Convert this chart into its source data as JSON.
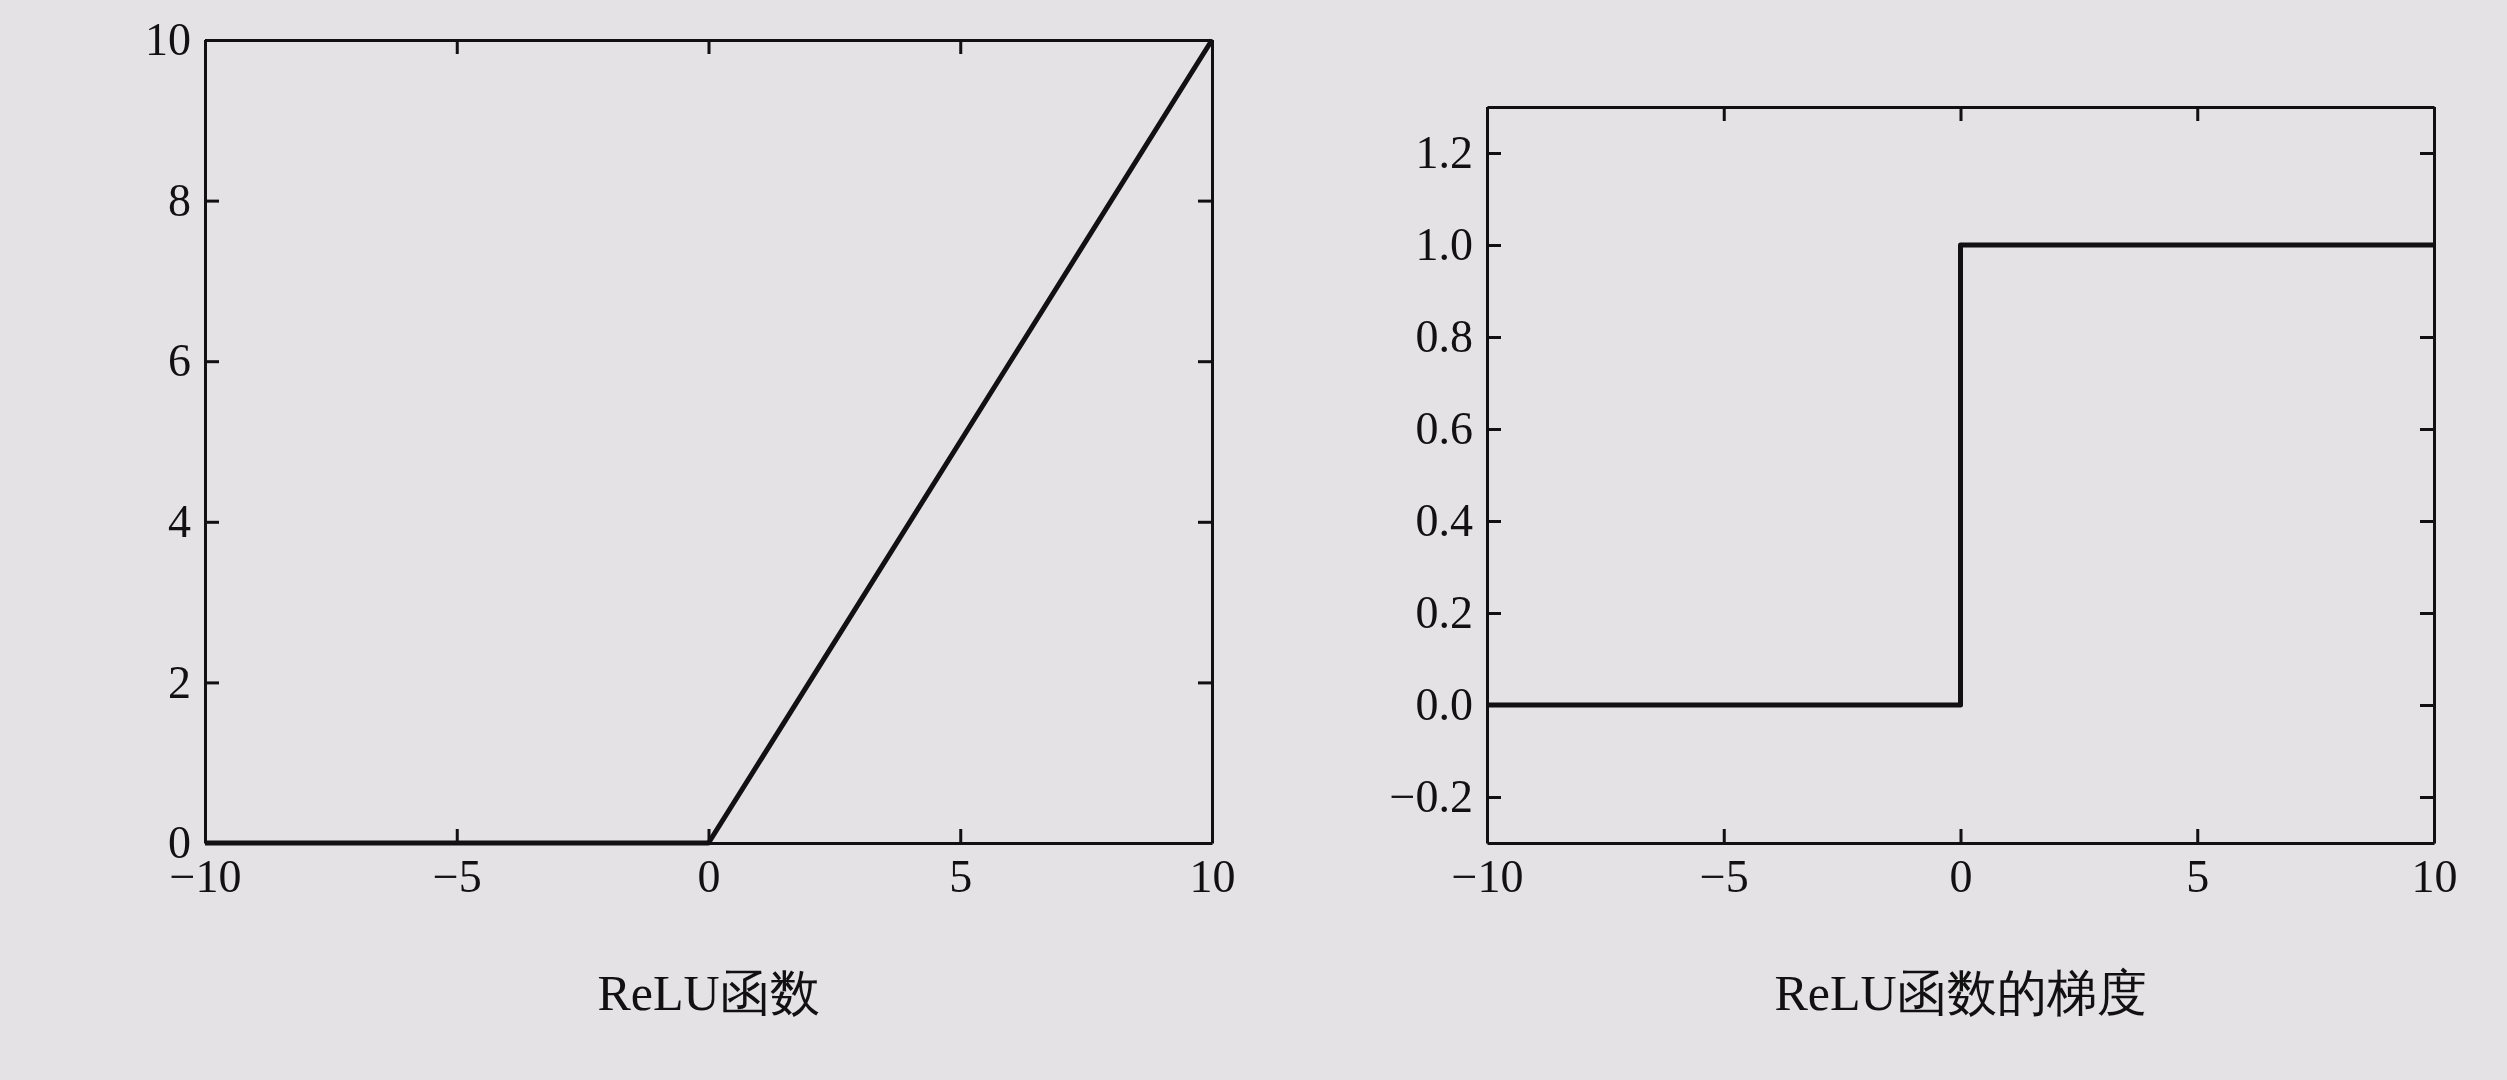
{
  "chart_data": [
    {
      "type": "line",
      "xlabel": "ReLU函数",
      "x": [
        -10,
        0,
        10
      ],
      "values": [
        0,
        0,
        10
      ],
      "color": "#111111",
      "xlim": [
        -10,
        10
      ],
      "ylim": [
        0,
        10
      ],
      "xticks": [
        -10,
        -5,
        0,
        5,
        10
      ],
      "yticks": [
        0,
        2,
        4,
        6,
        8,
        10
      ],
      "grid": false,
      "marker": "none",
      "line_style": "solid"
    },
    {
      "type": "line",
      "xlabel": "ReLU函数的梯度",
      "x": [
        -10,
        0,
        0,
        10
      ],
      "values": [
        0,
        0,
        1,
        1
      ],
      "color": "#111111",
      "xlim": [
        -10,
        10
      ],
      "ylim": [
        -0.3,
        1.3
      ],
      "xticks": [
        -10,
        -5,
        0,
        5,
        10
      ],
      "yticks": [
        {
          "value": -0.2,
          "label": "−0.2"
        },
        {
          "value": 0,
          "label": "0.0"
        },
        {
          "value": 0.2,
          "label": "0.2"
        },
        {
          "value": 0.4,
          "label": "0.4"
        },
        {
          "value": 0.6,
          "label": "0.6"
        },
        {
          "value": 0.8,
          "label": "0.8"
        },
        {
          "value": 1,
          "label": "1.0"
        },
        {
          "value": 1.2,
          "label": "1.2"
        }
      ],
      "grid": false,
      "marker": "none",
      "line_style": "solid"
    }
  ]
}
